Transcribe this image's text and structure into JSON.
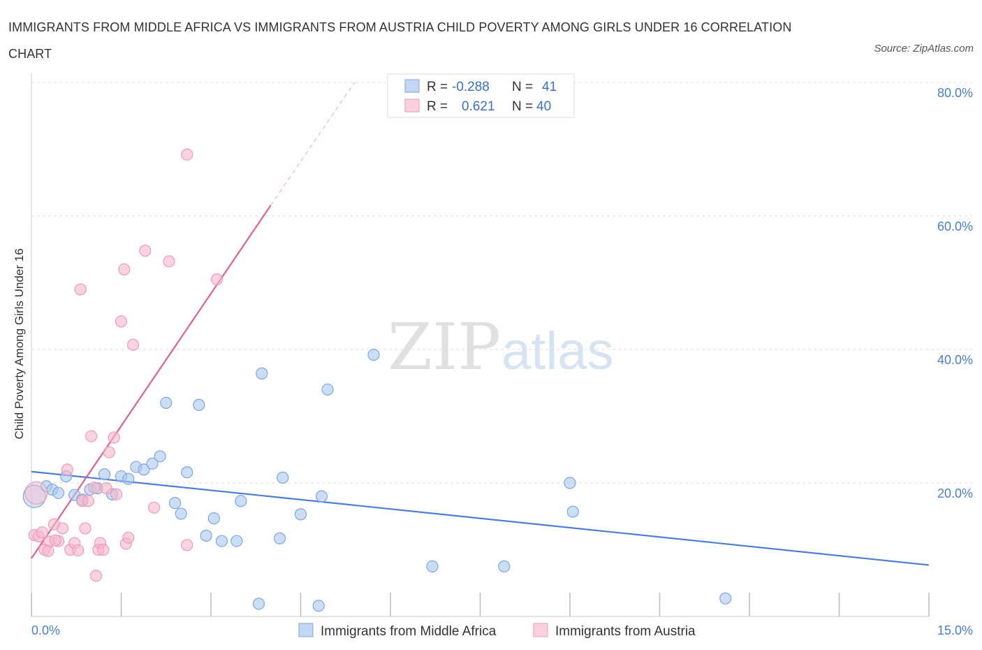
{
  "title": "IMMIGRANTS FROM MIDDLE AFRICA VS IMMIGRANTS FROM AUSTRIA CHILD POVERTY AMONG GIRLS UNDER 16 CORRELATION CHART",
  "source": "Source: ZipAtlas.com",
  "watermark": {
    "zip": "ZIP",
    "atlas": "atlas"
  },
  "colors": {
    "blue": "#4a7fd4",
    "blue_fill": "#aac8f0",
    "pink": "#e0608a",
    "pink_fill": "#f5b8cb",
    "tick_text": "#4a7fc8",
    "grid": "#dddddd"
  },
  "legend": {
    "rows": [
      {
        "r_label": "R =",
        "r_value": "-0.288",
        "n_label": "N =",
        "n_value": "41",
        "color": "blue"
      },
      {
        "r_label": "R =",
        "r_value": "0.621",
        "n_label": "N =",
        "n_value": "40",
        "color": "pink"
      }
    ]
  },
  "chart_data": {
    "type": "scatter",
    "xlabel": "",
    "ylabel": "Child Poverty Among Girls Under 16",
    "xlim": [
      0,
      15
    ],
    "ylim": [
      0,
      80
    ],
    "x_tick_labels": [
      "0.0%",
      "15.0%"
    ],
    "y_tick_labels": [
      "20.0%",
      "40.0%",
      "60.0%",
      "80.0%"
    ],
    "y_ticks": [
      20,
      40,
      60,
      80
    ],
    "grid": "horizontal dashed",
    "legend_position": "bottom",
    "series": [
      {
        "name": "Immigrants from Middle Africa",
        "color": "blue",
        "points": [
          [
            0.05,
            18.0
          ],
          [
            0.25,
            19.5
          ],
          [
            0.35,
            19.0
          ],
          [
            0.45,
            18.5
          ],
          [
            0.58,
            21.0
          ],
          [
            0.72,
            18.2
          ],
          [
            0.85,
            17.5
          ],
          [
            0.98,
            19.0
          ],
          [
            1.1,
            19.2
          ],
          [
            1.22,
            21.3
          ],
          [
            1.35,
            18.3
          ],
          [
            1.5,
            21.0
          ],
          [
            1.62,
            20.6
          ],
          [
            1.75,
            22.4
          ],
          [
            1.88,
            22.0
          ],
          [
            2.02,
            22.9
          ],
          [
            2.15,
            24.0
          ],
          [
            2.25,
            32.0
          ],
          [
            2.4,
            17.0
          ],
          [
            2.5,
            15.4
          ],
          [
            2.6,
            21.6
          ],
          [
            2.8,
            31.7
          ],
          [
            2.92,
            12.1
          ],
          [
            3.05,
            14.7
          ],
          [
            3.18,
            11.3
          ],
          [
            3.43,
            11.3
          ],
          [
            3.5,
            17.3
          ],
          [
            3.8,
            1.9
          ],
          [
            3.85,
            36.4
          ],
          [
            4.15,
            11.7
          ],
          [
            4.2,
            20.8
          ],
          [
            4.5,
            15.3
          ],
          [
            4.8,
            1.6
          ],
          [
            4.85,
            18.0
          ],
          [
            4.95,
            34.0
          ],
          [
            5.72,
            39.2
          ],
          [
            6.7,
            7.5
          ],
          [
            7.9,
            7.5
          ],
          [
            9.0,
            20.0
          ],
          [
            9.05,
            15.7
          ],
          [
            11.6,
            2.7
          ]
        ],
        "trend": {
          "x": [
            0,
            15
          ],
          "y": [
            21.7,
            7.7
          ]
        }
      },
      {
        "name": "Immigrants from Austria",
        "color": "pink",
        "points": [
          [
            0.05,
            12.2
          ],
          [
            0.12,
            12.0
          ],
          [
            0.18,
            12.6
          ],
          [
            0.22,
            10.0
          ],
          [
            0.3,
            11.2
          ],
          [
            0.38,
            13.8
          ],
          [
            0.45,
            11.3
          ],
          [
            0.52,
            13.2
          ],
          [
            0.6,
            22.0
          ],
          [
            0.65,
            10.0
          ],
          [
            0.72,
            11.0
          ],
          [
            0.78,
            9.9
          ],
          [
            0.82,
            49.0
          ],
          [
            0.85,
            17.3
          ],
          [
            0.9,
            13.2
          ],
          [
            0.95,
            17.3
          ],
          [
            1.0,
            27.0
          ],
          [
            1.05,
            19.3
          ],
          [
            1.08,
            6.1
          ],
          [
            1.12,
            10.0
          ],
          [
            1.15,
            11.0
          ],
          [
            1.2,
            10.0
          ],
          [
            1.25,
            19.2
          ],
          [
            1.3,
            24.6
          ],
          [
            1.38,
            26.8
          ],
          [
            1.42,
            18.3
          ],
          [
            1.5,
            44.2
          ],
          [
            1.55,
            52.0
          ],
          [
            1.58,
            10.9
          ],
          [
            1.62,
            11.8
          ],
          [
            1.7,
            40.7
          ],
          [
            1.9,
            54.8
          ],
          [
            2.05,
            16.3
          ],
          [
            2.3,
            53.2
          ],
          [
            2.6,
            10.7
          ],
          [
            2.6,
            69.2
          ],
          [
            3.1,
            50.5
          ],
          [
            0.28,
            9.8
          ],
          [
            0.4,
            11.4
          ],
          [
            0.08,
            18.5
          ]
        ],
        "trend": {
          "x": [
            0,
            4.0
          ],
          "y": [
            8.7,
            61.6
          ]
        },
        "trend_extension": {
          "x": [
            4.0,
            5.4
          ],
          "y": [
            61.6,
            80.0
          ]
        }
      }
    ]
  }
}
